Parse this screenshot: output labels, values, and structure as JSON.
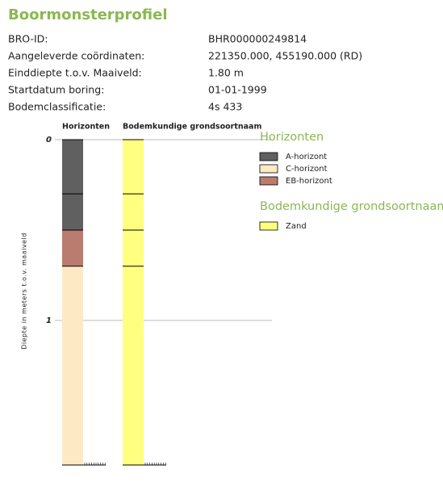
{
  "header": {
    "title": "Boormonsterprofiel"
  },
  "properties": [
    {
      "label": "BRO-ID:",
      "value": "BHR000000249814"
    },
    {
      "label": "Aangeleverde coördinaten:",
      "value": "221350.000, 455190.000 (RD)"
    },
    {
      "label": "Einddiepte t.o.v. Maaiveld:",
      "value": "1.80 m"
    },
    {
      "label": "Startdatum boring:",
      "value": "01-01-1999"
    },
    {
      "label": "Bodemclassificatie:",
      "value": "4s 433"
    }
  ],
  "profile": {
    "axis_label": "Diepte in meters t.o.v. maaiveld",
    "ylim": [
      0,
      1.8
    ],
    "yticks": [
      0,
      1
    ],
    "columns": [
      {
        "title": "Horizonten",
        "layers": [
          {
            "name": "A-horizont",
            "top": 0,
            "bottom": 0.3
          },
          {
            "name": "A-horizont",
            "top": 0.3,
            "bottom": 0.5
          },
          {
            "name": "EB-horizont",
            "top": 0.5,
            "bottom": 0.7
          },
          {
            "name": "C-horizont",
            "top": 0.7,
            "bottom": 1.8
          }
        ]
      },
      {
        "title": "Bodemkundige grondsoortnaam",
        "layers": [
          {
            "name": "Zand",
            "top": 0,
            "bottom": 0.3
          },
          {
            "name": "Zand",
            "top": 0.3,
            "bottom": 0.5
          },
          {
            "name": "Zand",
            "top": 0.5,
            "bottom": 0.7
          },
          {
            "name": "Zand",
            "top": 0.7,
            "bottom": 1.8
          }
        ]
      }
    ]
  },
  "legend": [
    {
      "title": "Horizonten",
      "items": [
        {
          "name": "A-horizont",
          "color": "#606060"
        },
        {
          "name": "C-horizont",
          "color": "#fde9c4"
        },
        {
          "name": "EB-horizont",
          "color": "#b97c6e"
        }
      ]
    },
    {
      "title": "Bodemkundige grondsoortnaam",
      "items": [
        {
          "name": "Zand",
          "color": "#ffff80"
        }
      ]
    }
  ]
}
